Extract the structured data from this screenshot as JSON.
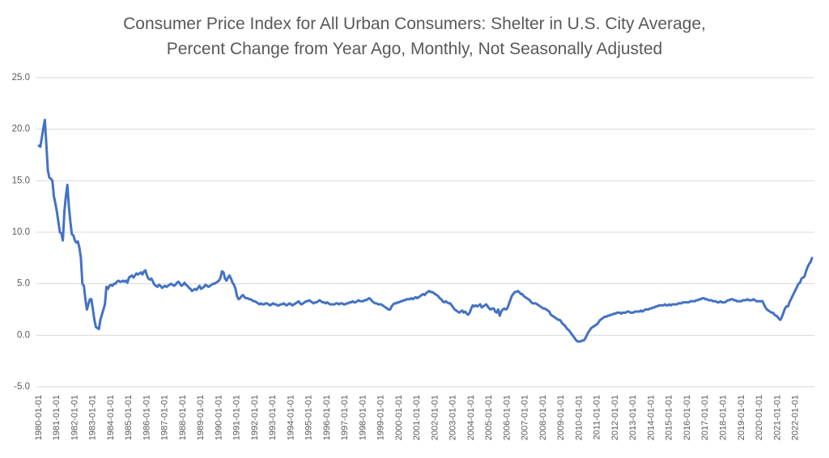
{
  "chart_data": {
    "type": "line",
    "title": [
      "Consumer Price Index for All Urban Consumers: Shelter in U.S. City Average,",
      "Percent Change from Year Ago, Monthly, Not Seasonally Adjusted"
    ],
    "categories": [
      "1980-01-01",
      null,
      null,
      null,
      null,
      null,
      null,
      null,
      null,
      null,
      null,
      null,
      "1981-01-01",
      null,
      null,
      null,
      null,
      null,
      null,
      null,
      null,
      null,
      null,
      null,
      "1982-01-01",
      null,
      null,
      null,
      null,
      null,
      null,
      null,
      null,
      null,
      null,
      null,
      "1983-01-01",
      null,
      null,
      null,
      null,
      null,
      null,
      null,
      null,
      null,
      null,
      null,
      "1984-01-01",
      null,
      null,
      null,
      null,
      null,
      null,
      null,
      null,
      null,
      null,
      null,
      "1985-01-01",
      null,
      null,
      null,
      null,
      null,
      null,
      null,
      null,
      null,
      null,
      null,
      "1986-01-01",
      null,
      null,
      null,
      null,
      null,
      null,
      null,
      null,
      null,
      null,
      null,
      "1987-01-01",
      null,
      null,
      null,
      null,
      null,
      null,
      null,
      null,
      null,
      null,
      null,
      "1988-01-01",
      null,
      null,
      null,
      null,
      null,
      null,
      null,
      null,
      null,
      null,
      null,
      "1989-01-01",
      null,
      null,
      null,
      null,
      null,
      null,
      null,
      null,
      null,
      null,
      null,
      "1990-01-01",
      null,
      null,
      null,
      null,
      null,
      null,
      null,
      null,
      null,
      null,
      null,
      "1991-01-01",
      null,
      null,
      null,
      null,
      null,
      null,
      null,
      null,
      null,
      null,
      null,
      "1992-01-01",
      null,
      null,
      null,
      null,
      null,
      null,
      null,
      null,
      null,
      null,
      null,
      "1993-01-01",
      null,
      null,
      null,
      null,
      null,
      null,
      null,
      null,
      null,
      null,
      null,
      "1994-01-01",
      null,
      null,
      null,
      null,
      null,
      null,
      null,
      null,
      null,
      null,
      null,
      "1995-01-01",
      null,
      null,
      null,
      null,
      null,
      null,
      null,
      null,
      null,
      null,
      null,
      "1996-01-01",
      null,
      null,
      null,
      null,
      null,
      null,
      null,
      null,
      null,
      null,
      null,
      "1997-01-01",
      null,
      null,
      null,
      null,
      null,
      null,
      null,
      null,
      null,
      null,
      null,
      "1998-01-01",
      null,
      null,
      null,
      null,
      null,
      null,
      null,
      null,
      null,
      null,
      null,
      "1999-01-01",
      null,
      null,
      null,
      null,
      null,
      null,
      null,
      null,
      null,
      null,
      null,
      "2000-01-01",
      null,
      null,
      null,
      null,
      null,
      null,
      null,
      null,
      null,
      null,
      null,
      "2001-01-01",
      null,
      null,
      null,
      null,
      null,
      null,
      null,
      null,
      null,
      null,
      null,
      "2002-01-01",
      null,
      null,
      null,
      null,
      null,
      null,
      null,
      null,
      null,
      null,
      null,
      "2003-01-01",
      null,
      null,
      null,
      null,
      null,
      null,
      null,
      null,
      null,
      null,
      null,
      "2004-01-01",
      null,
      null,
      null,
      null,
      null,
      null,
      null,
      null,
      null,
      null,
      null,
      "2005-01-01",
      null,
      null,
      null,
      null,
      null,
      null,
      null,
      null,
      null,
      null,
      null,
      "2006-01-01",
      null,
      null,
      null,
      null,
      null,
      null,
      null,
      null,
      null,
      null,
      null,
      "2007-01-01",
      null,
      null,
      null,
      null,
      null,
      null,
      null,
      null,
      null,
      null,
      null,
      "2008-01-01",
      null,
      null,
      null,
      null,
      null,
      null,
      null,
      null,
      null,
      null,
      null,
      "2009-01-01",
      null,
      null,
      null,
      null,
      null,
      null,
      null,
      null,
      null,
      null,
      null,
      "2010-01-01",
      null,
      null,
      null,
      null,
      null,
      null,
      null,
      null,
      null,
      null,
      null,
      "2011-01-01",
      null,
      null,
      null,
      null,
      null,
      null,
      null,
      null,
      null,
      null,
      null,
      "2012-01-01",
      null,
      null,
      null,
      null,
      null,
      null,
      null,
      null,
      null,
      null,
      null,
      "2013-01-01",
      null,
      null,
      null,
      null,
      null,
      null,
      null,
      null,
      null,
      null,
      null,
      "2014-01-01",
      null,
      null,
      null,
      null,
      null,
      null,
      null,
      null,
      null,
      null,
      null,
      "2015-01-01",
      null,
      null,
      null,
      null,
      null,
      null,
      null,
      null,
      null,
      null,
      null,
      "2016-01-01",
      null,
      null,
      null,
      null,
      null,
      null,
      null,
      null,
      null,
      null,
      null,
      "2017-01-01",
      null,
      null,
      null,
      null,
      null,
      null,
      null,
      null,
      null,
      null,
      null,
      "2018-01-01",
      null,
      null,
      null,
      null,
      null,
      null,
      null,
      null,
      null,
      null,
      null,
      "2019-01-01",
      null,
      null,
      null,
      null,
      null,
      null,
      null,
      null,
      null,
      null,
      null,
      "2020-01-01",
      null,
      null,
      null,
      null,
      null,
      null,
      null,
      null,
      null,
      null,
      null,
      "2021-01-01",
      null,
      null,
      null,
      null,
      null,
      null,
      null,
      null,
      null,
      null,
      null,
      "2022-01-01",
      null,
      null,
      null,
      null,
      null,
      null,
      null,
      null,
      null,
      null,
      null
    ],
    "values": [
      18.4,
      18.3,
      19.2,
      20.1,
      20.9,
      18.5,
      16.0,
      15.3,
      15.2,
      15.0,
      13.5,
      12.8,
      12.0,
      11.0,
      10.0,
      9.9,
      9.2,
      12.0,
      13.5,
      14.6,
      12.5,
      11.0,
      9.8,
      9.7,
      9.2,
      9.0,
      9.1,
      8.5,
      7.5,
      5.0,
      4.8,
      3.5,
      2.5,
      3.0,
      3.5,
      3.5,
      2.5,
      1.5,
      0.8,
      0.7,
      0.6,
      1.5,
      2.0,
      2.5,
      3.0,
      4.7,
      4.5,
      4.8,
      4.9,
      4.8,
      5.0,
      5.0,
      5.2,
      5.3,
      5.2,
      5.2,
      5.3,
      5.2,
      5.3,
      5.1,
      5.6,
      5.7,
      5.8,
      5.6,
      5.8,
      6.0,
      5.9,
      6.0,
      6.1,
      5.9,
      6.2,
      6.3,
      5.8,
      5.5,
      5.4,
      5.5,
      5.2,
      4.9,
      4.8,
      4.7,
      4.9,
      4.8,
      4.6,
      4.7,
      4.8,
      4.7,
      4.8,
      4.9,
      5.0,
      4.9,
      4.8,
      4.9,
      5.1,
      5.2,
      5.0,
      4.8,
      4.9,
      5.1,
      4.9,
      4.8,
      4.6,
      4.5,
      4.3,
      4.4,
      4.5,
      4.4,
      4.6,
      4.8,
      4.5,
      4.6,
      4.7,
      4.9,
      4.8,
      4.7,
      4.8,
      4.9,
      5.0,
      5.0,
      5.1,
      5.2,
      5.3,
      5.6,
      6.2,
      6.1,
      5.5,
      5.3,
      5.6,
      5.8,
      5.5,
      5.1,
      4.9,
      4.5,
      3.8,
      3.5,
      3.6,
      3.8,
      3.9,
      3.7,
      3.6,
      3.6,
      3.5,
      3.5,
      3.4,
      3.3,
      3.3,
      3.2,
      3.1,
      3.0,
      3.1,
      3.0,
      3.0,
      3.1,
      3.1,
      3.0,
      2.9,
      3.0,
      3.1,
      3.0,
      3.0,
      2.9,
      2.9,
      3.0,
      3.0,
      3.1,
      3.0,
      2.9,
      3.0,
      3.1,
      3.0,
      2.9,
      3.0,
      3.1,
      3.2,
      3.3,
      3.1,
      3.0,
      3.1,
      3.2,
      3.3,
      3.3,
      3.4,
      3.3,
      3.2,
      3.1,
      3.2,
      3.2,
      3.3,
      3.4,
      3.3,
      3.2,
      3.2,
      3.1,
      3.2,
      3.1,
      3.0,
      3.0,
      3.0,
      3.0,
      3.1,
      3.1,
      3.0,
      3.1,
      3.1,
      3.0,
      3.0,
      3.1,
      3.1,
      3.2,
      3.2,
      3.3,
      3.2,
      3.2,
      3.3,
      3.4,
      3.3,
      3.3,
      3.3,
      3.4,
      3.4,
      3.5,
      3.6,
      3.5,
      3.3,
      3.2,
      3.1,
      3.1,
      3.0,
      3.0,
      3.0,
      2.9,
      2.8,
      2.7,
      2.6,
      2.5,
      2.5,
      2.8,
      3.0,
      3.1,
      3.1,
      3.2,
      3.2,
      3.3,
      3.3,
      3.4,
      3.4,
      3.5,
      3.5,
      3.5,
      3.6,
      3.5,
      3.6,
      3.7,
      3.6,
      3.7,
      3.8,
      3.9,
      4.0,
      3.9,
      4.1,
      4.2,
      4.3,
      4.2,
      4.2,
      4.1,
      4.0,
      3.9,
      3.8,
      3.6,
      3.5,
      3.3,
      3.2,
      3.3,
      3.2,
      3.1,
      3.1,
      2.9,
      2.7,
      2.5,
      2.4,
      2.3,
      2.2,
      2.3,
      2.4,
      2.2,
      2.3,
      2.1,
      2.0,
      2.2,
      2.6,
      2.9,
      2.8,
      2.9,
      2.8,
      2.9,
      3.0,
      2.7,
      2.8,
      2.9,
      3.0,
      2.8,
      2.6,
      2.5,
      2.6,
      2.6,
      2.3,
      2.2,
      2.5,
      1.9,
      2.3,
      2.5,
      2.6,
      2.5,
      2.6,
      3.0,
      3.4,
      3.8,
      4.0,
      4.2,
      4.2,
      4.3,
      4.2,
      4.0,
      4.0,
      3.8,
      3.7,
      3.6,
      3.5,
      3.4,
      3.2,
      3.1,
      3.1,
      3.1,
      3.0,
      2.9,
      2.8,
      2.7,
      2.6,
      2.6,
      2.5,
      2.4,
      2.3,
      2.0,
      1.9,
      1.8,
      1.7,
      1.6,
      1.5,
      1.5,
      1.3,
      1.1,
      1.0,
      0.8,
      0.6,
      0.5,
      0.3,
      0.1,
      -0.1,
      -0.3,
      -0.5,
      -0.6,
      -0.6,
      -0.6,
      -0.5,
      -0.5,
      -0.3,
      0.0,
      0.3,
      0.5,
      0.7,
      0.8,
      0.9,
      1.0,
      1.1,
      1.3,
      1.5,
      1.6,
      1.7,
      1.8,
      1.8,
      1.9,
      1.9,
      2.0,
      2.0,
      2.1,
      2.1,
      2.2,
      2.2,
      2.2,
      2.1,
      2.2,
      2.2,
      2.2,
      2.3,
      2.3,
      2.2,
      2.2,
      2.2,
      2.3,
      2.3,
      2.3,
      2.3,
      2.4,
      2.3,
      2.4,
      2.5,
      2.5,
      2.5,
      2.6,
      2.6,
      2.7,
      2.7,
      2.8,
      2.8,
      2.9,
      2.9,
      2.9,
      2.9,
      3.0,
      2.9,
      2.9,
      3.0,
      2.9,
      3.0,
      3.0,
      3.0,
      3.0,
      3.1,
      3.1,
      3.1,
      3.2,
      3.2,
      3.2,
      3.2,
      3.2,
      3.3,
      3.3,
      3.3,
      3.3,
      3.4,
      3.4,
      3.5,
      3.5,
      3.6,
      3.6,
      3.5,
      3.5,
      3.4,
      3.4,
      3.4,
      3.3,
      3.3,
      3.3,
      3.2,
      3.2,
      3.3,
      3.2,
      3.2,
      3.2,
      3.3,
      3.4,
      3.4,
      3.5,
      3.5,
      3.4,
      3.4,
      3.3,
      3.3,
      3.3,
      3.3,
      3.4,
      3.4,
      3.4,
      3.5,
      3.4,
      3.4,
      3.4,
      3.5,
      3.4,
      3.3,
      3.3,
      3.3,
      3.3,
      3.3,
      3.0,
      2.7,
      2.5,
      2.4,
      2.3,
      2.2,
      2.2,
      2.0,
      1.9,
      1.8,
      1.6,
      1.5,
      1.8,
      2.2,
      2.6,
      2.8,
      2.8,
      3.2,
      3.5,
      3.8,
      4.1,
      4.4,
      4.7,
      5.0,
      5.1,
      5.5,
      5.6,
      5.7,
      6.2,
      6.6,
      6.9,
      7.1,
      7.5
    ],
    "color": "#4472c4",
    "ylim": [
      -5,
      25
    ],
    "yticks": [
      {
        "value": -5,
        "label": "-5.0"
      },
      {
        "value": 0,
        "label": "0.0"
      },
      {
        "value": 5,
        "label": "5.0"
      },
      {
        "value": 10,
        "label": "10.0"
      },
      {
        "value": 15,
        "label": "15.0"
      },
      {
        "value": 20,
        "label": "20.0"
      },
      {
        "value": 25,
        "label": "25.0"
      }
    ],
    "grid": true
  }
}
